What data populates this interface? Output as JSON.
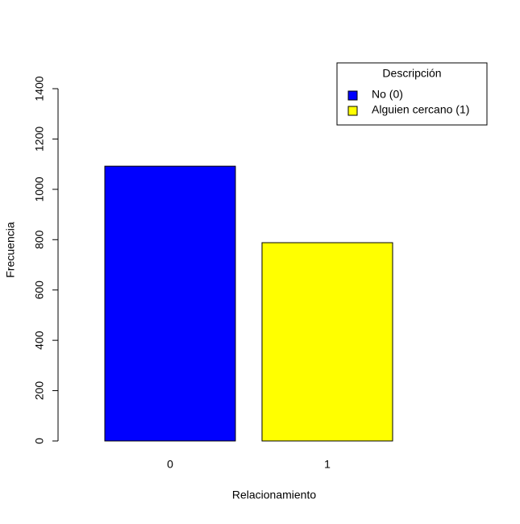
{
  "chart_data": {
    "type": "bar",
    "x_label": "Relacionamiento",
    "y_label": "Frecuencia",
    "categories": [
      "0",
      "1"
    ],
    "values": [
      1092,
      788
    ],
    "colors": [
      "#0000ff",
      "#ffff00"
    ],
    "ylim": [
      0,
      1400
    ],
    "yticks": [
      0,
      200,
      400,
      600,
      800,
      1000,
      1200,
      1400
    ],
    "legend": {
      "title": "Descripción",
      "labels": [
        "No (0)",
        "Alguien cercano (1)"
      ],
      "position": "top-right"
    }
  }
}
